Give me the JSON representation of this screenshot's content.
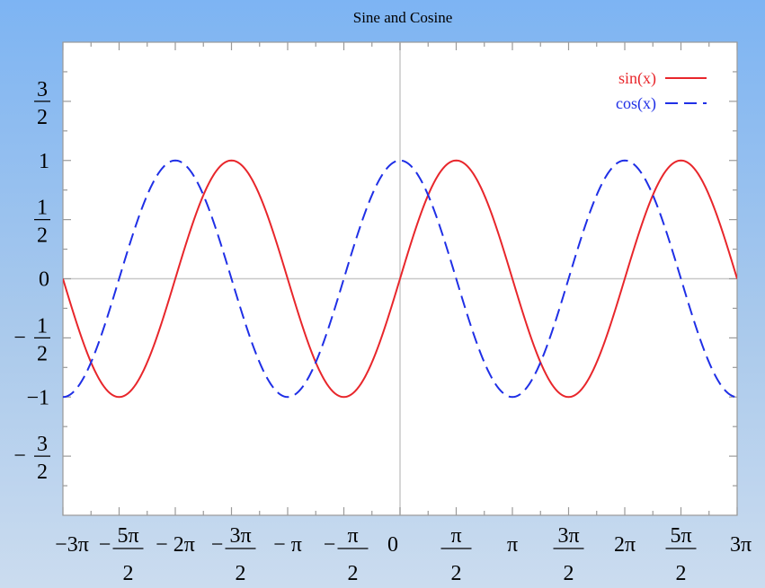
{
  "chart_data": {
    "type": "line",
    "title": "Sine and Cosine",
    "xlabel": "",
    "ylabel": "",
    "xlim": [
      -9.42477796,
      9.42477796
    ],
    "ylim": [
      -2.0,
      2.0
    ],
    "grid": false,
    "legend_position": "top-right",
    "x_ticks": [
      {
        "v": -9.42477796,
        "label": "−3π"
      },
      {
        "v": -7.85398163,
        "sign": "−",
        "num": "5π",
        "den": "2"
      },
      {
        "v": -6.28318531,
        "label": "− 2π"
      },
      {
        "v": -4.71238898,
        "sign": "−",
        "num": "3π",
        "den": "2"
      },
      {
        "v": -3.14159265,
        "label": "− π"
      },
      {
        "v": -1.57079633,
        "sign": "−",
        "num": "π",
        "den": "2"
      },
      {
        "v": 0,
        "label": "0"
      },
      {
        "v": 1.57079633,
        "num": "π",
        "den": "2"
      },
      {
        "v": 3.14159265,
        "label": "π"
      },
      {
        "v": 4.71238898,
        "num": "3π",
        "den": "2"
      },
      {
        "v": 6.28318531,
        "label": "2π"
      },
      {
        "v": 7.85398163,
        "num": "5π",
        "den": "2"
      },
      {
        "v": 9.42477796,
        "label": "3π"
      }
    ],
    "y_ticks": [
      {
        "v": 1.5,
        "num": "3",
        "den": "2"
      },
      {
        "v": 1,
        "label": "1"
      },
      {
        "v": 0.5,
        "num": "1",
        "den": "2"
      },
      {
        "v": 0,
        "label": "0"
      },
      {
        "v": -0.5,
        "sign": "−",
        "num": "1",
        "den": "2"
      },
      {
        "v": -1,
        "label": "−1"
      },
      {
        "v": -1.5,
        "sign": "−",
        "num": "3",
        "den": "2"
      }
    ],
    "series": [
      {
        "name": "sin(x)",
        "function": "sin",
        "color": "#e8262b",
        "dash": "solid"
      },
      {
        "name": "cos(x)",
        "function": "cos",
        "color": "#1f2fe6",
        "dash": "dashed"
      }
    ]
  },
  "colors": {
    "plot_background": "#ffffff",
    "axis": "#9a9a9a",
    "zero_lines": "#c8c8c8",
    "text": "#000000"
  }
}
